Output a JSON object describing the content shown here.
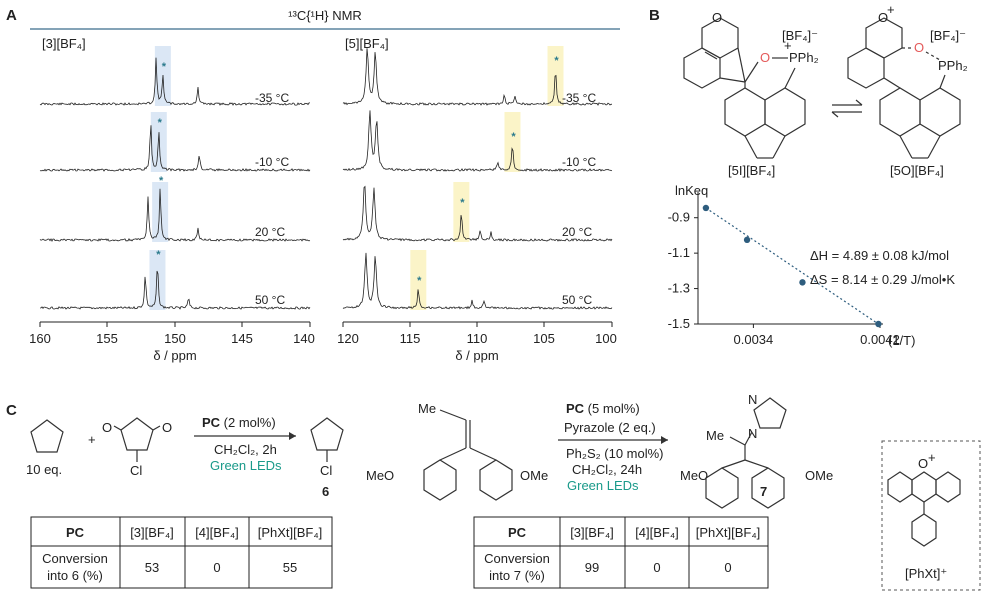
{
  "panels": {
    "a": "A",
    "b": "B",
    "c": "C"
  },
  "nmr": {
    "title": "¹³C{¹H} NMR",
    "left": {
      "label": "[3][BF₄]",
      "temps": [
        "-35 °C",
        "-10 °C",
        "20 °C",
        "50 °C"
      ],
      "ticks": [
        "160",
        "155",
        "150",
        "145",
        "140"
      ],
      "xlabel": "δ / ppm",
      "star_ppm": [
        150.9,
        151.2,
        151.1,
        151.3
      ]
    },
    "right": {
      "label": "[5][BF₄]",
      "temps": [
        "-35 °C",
        "-10 °C",
        "20 °C",
        "50 °C"
      ],
      "ticks": [
        "120",
        "115",
        "110",
        "105",
        "100"
      ],
      "xlabel": "δ / ppm",
      "star_ppm": [
        104.2,
        107.4,
        111.2,
        114.4
      ]
    }
  },
  "scheme_b": {
    "left_label": "[5I][BF₄]",
    "right_label": "[5O][BF₄]",
    "counter_left": "[BF₄]⁻",
    "counter_right": "[BF₄]⁻",
    "pph2": "PPh₂",
    "o_label": "O",
    "plus": "+"
  },
  "chart_data": {
    "type": "scatter",
    "title": "",
    "xlabel": "(1/T)",
    "ylabel": "lnKeq",
    "x_tick_labels": [
      "0.0034",
      "0.0042"
    ],
    "y_tick_labels": [
      "-0.9",
      "-1.1",
      "-1.3",
      "-1.5"
    ],
    "xlim": [
      0.00305,
      0.0042
    ],
    "ylim": [
      -1.5,
      -0.8
    ],
    "x": [
      0.0031,
      0.00336,
      0.00371,
      0.00419
    ],
    "y": [
      -0.845,
      -1.025,
      -1.265,
      -1.5
    ],
    "fit": "dotted linear",
    "annotations": [
      "ΔH = 4.89 ± 0.08 kJ/mol",
      "ΔS = 8.14 ± 0.29 J/mol•K"
    ]
  },
  "scheme_c": {
    "rxn1": {
      "equiv": "10 eq.",
      "plus": "+",
      "cl": "Cl",
      "cat": "PC",
      "cat_load": " (2 mol%)",
      "solvent": "CH₂Cl₂, 2h",
      "light": "Green LEDs",
      "product_cl": "Cl",
      "product": "6"
    },
    "rxn2": {
      "me": "Me",
      "meo_left": "MeO",
      "ome_right": "OMe",
      "cat": "PC",
      "cat_load": " (5 mol%)",
      "reagent": "Pyrazole (2 eq.)",
      "additive": "Ph₂S₂ (10 mol%)",
      "solvent": "CH₂Cl₂, 24h",
      "light": "Green LEDs",
      "product": "7",
      "n_label": "N",
      "me2": "Me"
    },
    "xanthylium_label": "[PhXt]⁺"
  },
  "table1": {
    "headers": [
      "PC",
      "[3][BF₄]",
      "[4][BF₄]",
      "[PhXt][BF₄]"
    ],
    "row_label_1": "Conversion",
    "row_label_2": "into 6 (%)",
    "values": [
      "53",
      "0",
      "55"
    ]
  },
  "table2": {
    "headers": [
      "PC",
      "[3][BF₄]",
      "[4][BF₄]",
      "[PhXt][BF₄]"
    ],
    "row_label_1": "Conversion",
    "row_label_2": "into 7 (%)",
    "values": [
      "99",
      "0",
      "0"
    ]
  },
  "colors": {
    "blue_band": "#dbe7f5",
    "yellow_band": "#fbf4c8",
    "marker": "#2e5d7e",
    "star": "#2a7a8c",
    "title_rule": "#3a6c8c"
  }
}
